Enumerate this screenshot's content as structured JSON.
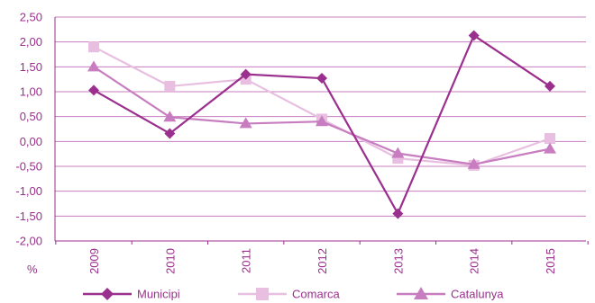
{
  "chart_data": {
    "type": "line",
    "unit_label": "%",
    "categories": [
      "2009",
      "2010",
      "2011",
      "2012",
      "2013",
      "2014",
      "2015"
    ],
    "y_ticks": [
      "2,50",
      "2,00",
      "1,50",
      "1,00",
      "0,50",
      "0,00",
      "-0,50",
      "-1,00",
      "-1,50",
      "-2,00"
    ],
    "ylim": [
      -2.0,
      2.5
    ],
    "y_step": 0.5,
    "grid": true,
    "legend_position": "bottom",
    "axis_color": "#9b2f8e",
    "grid_color": "#c77dbf",
    "series": [
      {
        "name": "Municipi",
        "marker": "diamond",
        "color": "#9b2f8e",
        "values": [
          1.03,
          0.16,
          1.35,
          1.27,
          -1.45,
          2.13,
          1.11
        ]
      },
      {
        "name": "Comarca",
        "marker": "square",
        "color": "#e8bfe0",
        "values": [
          1.9,
          1.11,
          1.25,
          0.45,
          -0.34,
          -0.48,
          0.06
        ]
      },
      {
        "name": "Catalunya",
        "marker": "triangle",
        "color": "#c77dbf",
        "values": [
          1.5,
          0.49,
          0.36,
          0.4,
          -0.24,
          -0.46,
          -0.15
        ]
      }
    ]
  }
}
